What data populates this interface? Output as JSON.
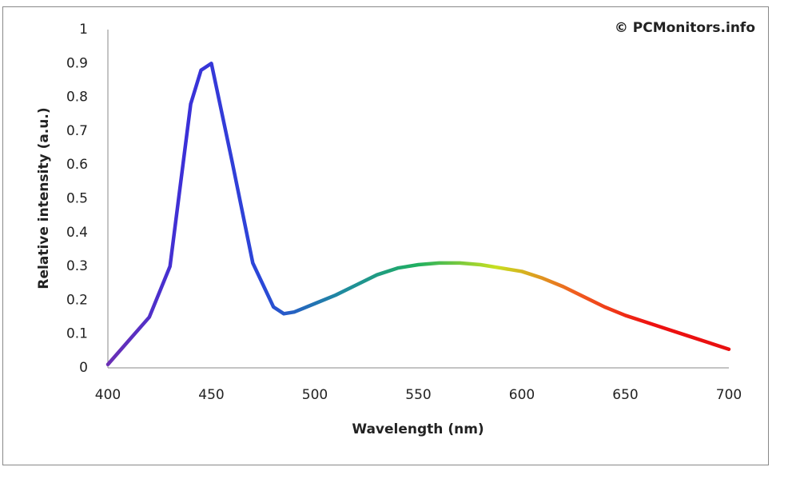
{
  "chart_data": {
    "type": "line",
    "x_label": "Wavelength (nm)",
    "y_label": "Relative intensity (a.u.)",
    "annotation": "© PCMonitors.info",
    "x": [
      400,
      410,
      420,
      430,
      440,
      445,
      450,
      460,
      470,
      480,
      485,
      490,
      500,
      510,
      520,
      530,
      540,
      550,
      560,
      570,
      580,
      590,
      600,
      610,
      620,
      630,
      640,
      650,
      660,
      670,
      680,
      690,
      700
    ],
    "series": [
      {
        "colors": [
          "#6b2fb5",
          "#3b30d8",
          "#2a48d8",
          "#1f8aa0",
          "#20b060",
          "#c8e020",
          "#f06020",
          "#ee1010",
          "#e81010"
        ],
        "values": [
          0.01,
          0.08,
          0.15,
          0.3,
          0.78,
          0.88,
          0.9,
          0.61,
          0.31,
          0.18,
          0.16,
          0.165,
          0.19,
          0.215,
          0.245,
          0.275,
          0.295,
          0.305,
          0.31,
          0.31,
          0.305,
          0.295,
          0.285,
          0.265,
          0.24,
          0.21,
          0.18,
          0.155,
          0.135,
          0.115,
          0.095,
          0.075,
          0.055
        ]
      }
    ],
    "xlim": [
      400,
      700
    ],
    "xticks": [
      400,
      450,
      500,
      550,
      600,
      650,
      700
    ],
    "ylim": [
      0,
      1
    ],
    "yticks": [
      0,
      0.1,
      0.2,
      0.3,
      0.4,
      0.5,
      0.6,
      0.7,
      0.8,
      0.9,
      1
    ],
    "grid": false
  }
}
